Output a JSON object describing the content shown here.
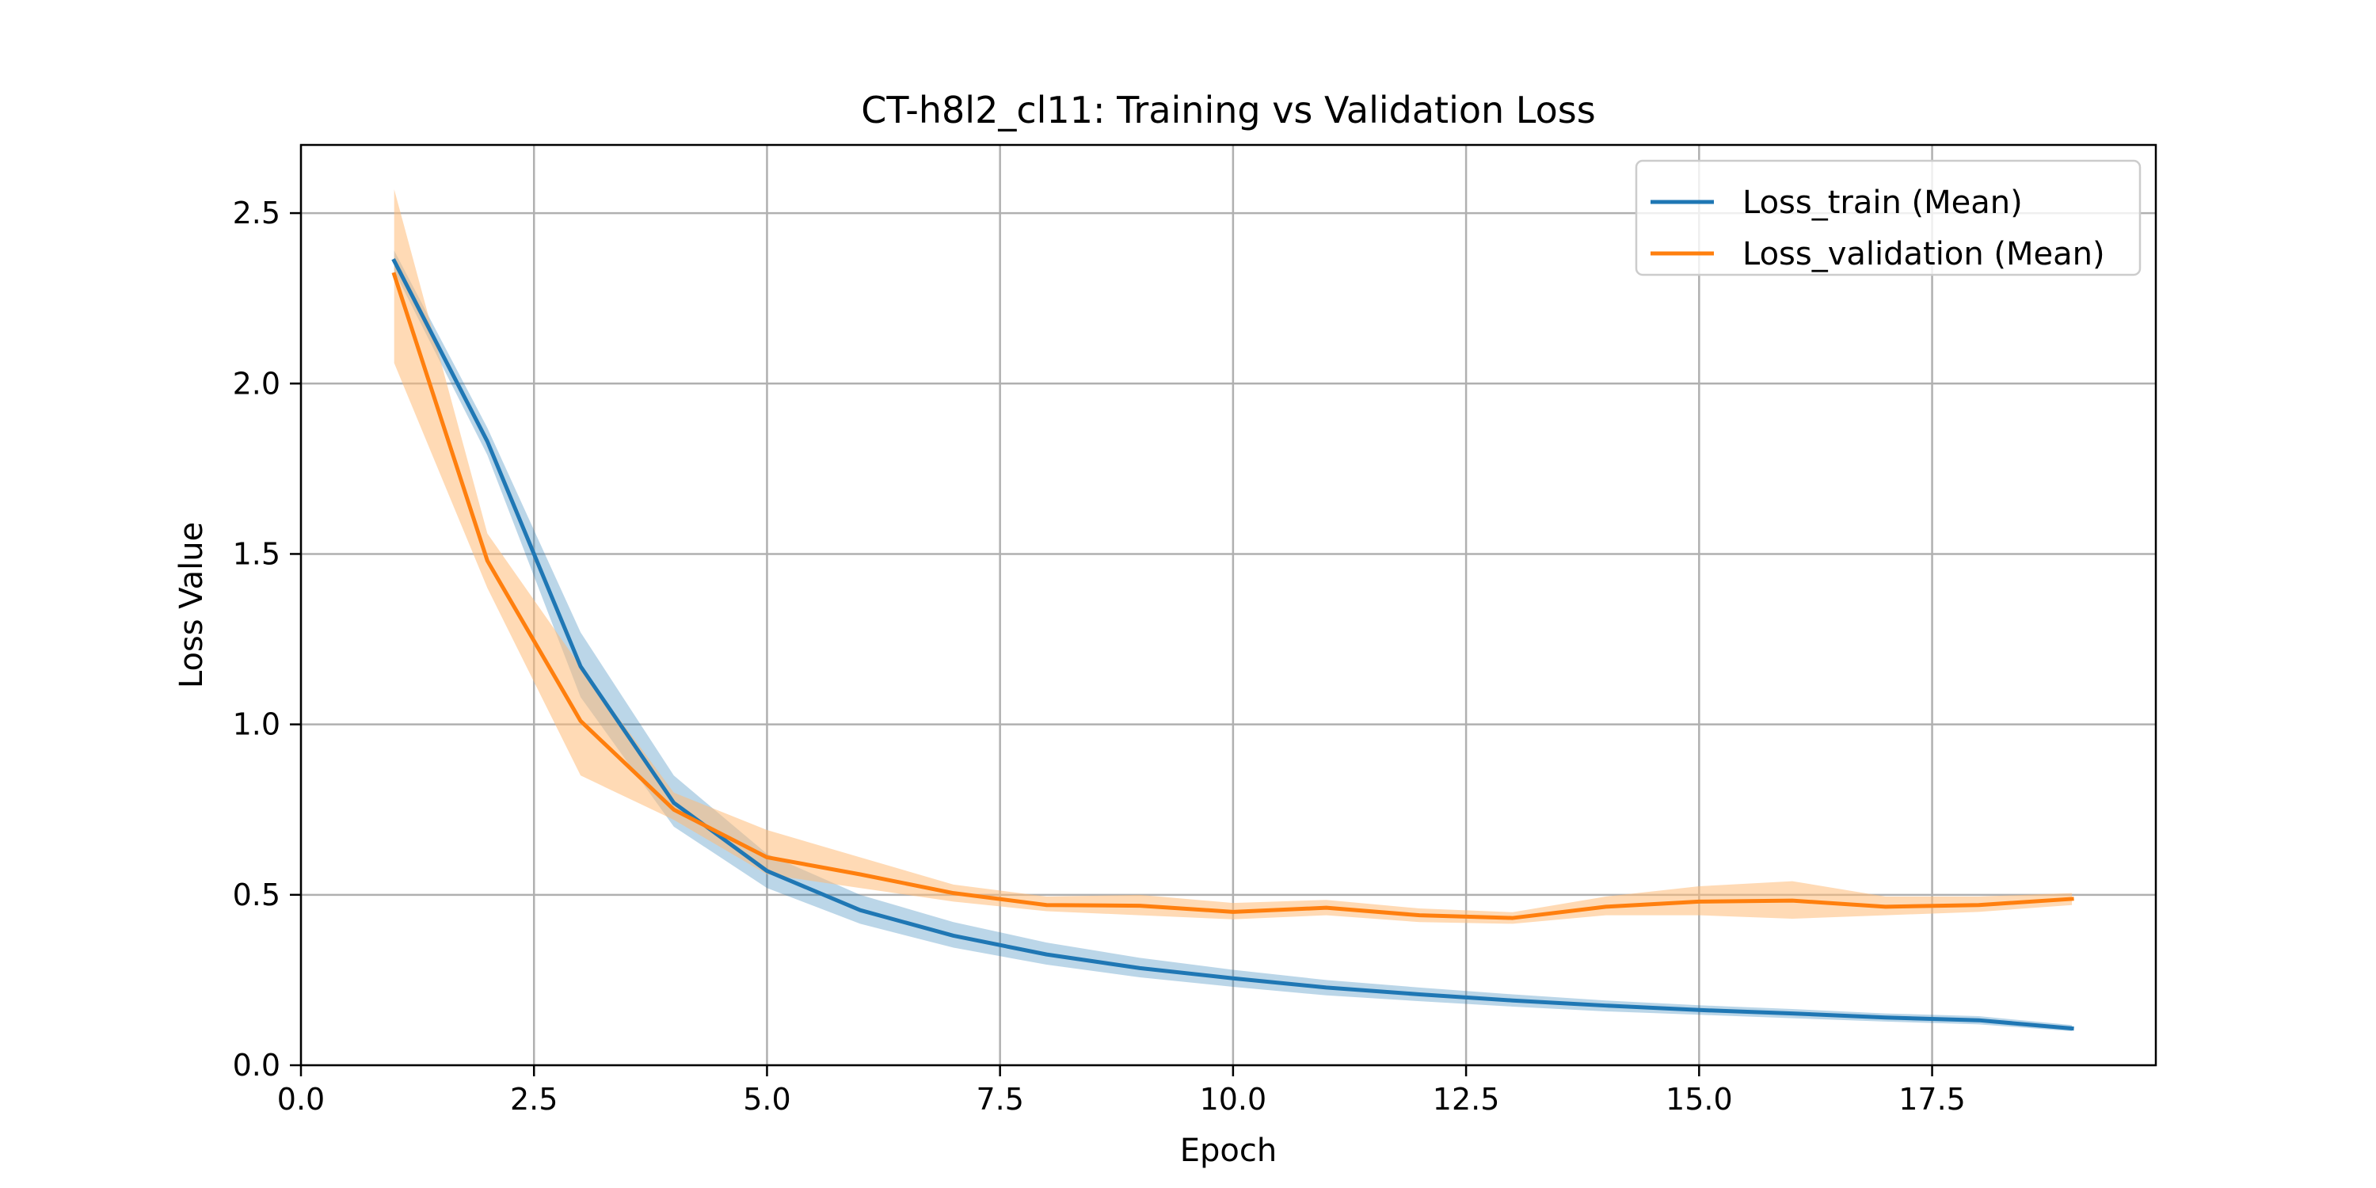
{
  "chart_data": {
    "type": "line",
    "title": "CT-h8l2_cl11: Training vs Validation Loss",
    "xlabel": "Epoch",
    "ylabel": "Loss Value",
    "xlim": [
      0,
      19.9
    ],
    "ylim": [
      0,
      2.7
    ],
    "xticks": [
      0.0,
      2.5,
      5.0,
      7.5,
      10.0,
      12.5,
      15.0,
      17.5
    ],
    "xtick_labels": [
      "0.0",
      "2.5",
      "5.0",
      "7.5",
      "10.0",
      "12.5",
      "15.0",
      "17.5"
    ],
    "yticks": [
      0.0,
      0.5,
      1.0,
      1.5,
      2.0,
      2.5
    ],
    "ytick_labels": [
      "0.0",
      "0.5",
      "1.0",
      "1.5",
      "2.0",
      "2.5"
    ],
    "grid": true,
    "legend_position": "top-right",
    "x": [
      1,
      2,
      3,
      4,
      5,
      6,
      7,
      8,
      9,
      10,
      11,
      12,
      13,
      14,
      15,
      16,
      17,
      18,
      19
    ],
    "series": [
      {
        "name": "Loss_train (Mean)",
        "color": "#1f77b4",
        "band_color": "#1f77b4",
        "values": [
          2.36,
          1.83,
          1.17,
          0.77,
          0.57,
          0.455,
          0.38,
          0.325,
          0.285,
          0.255,
          0.228,
          0.208,
          0.19,
          0.175,
          0.162,
          0.152,
          0.14,
          0.132,
          0.108
        ],
        "lower": [
          2.33,
          1.79,
          1.08,
          0.7,
          0.52,
          0.415,
          0.345,
          0.295,
          0.258,
          0.23,
          0.205,
          0.188,
          0.172,
          0.158,
          0.148,
          0.138,
          0.128,
          0.12,
          0.1
        ],
        "upper": [
          2.39,
          1.87,
          1.27,
          0.85,
          0.62,
          0.5,
          0.42,
          0.36,
          0.315,
          0.28,
          0.25,
          0.228,
          0.208,
          0.19,
          0.176,
          0.165,
          0.152,
          0.144,
          0.118
        ]
      },
      {
        "name": "Loss_validation (Mean)",
        "color": "#ff7f0e",
        "band_color": "#ffbb78",
        "values": [
          2.32,
          1.48,
          1.01,
          0.75,
          0.61,
          0.56,
          0.505,
          0.47,
          0.468,
          0.45,
          0.462,
          0.44,
          0.432,
          0.465,
          0.48,
          0.483,
          0.465,
          0.47,
          0.488
        ],
        "lower": [
          2.06,
          1.4,
          0.85,
          0.72,
          0.56,
          0.52,
          0.48,
          0.452,
          0.44,
          0.428,
          0.44,
          0.42,
          0.415,
          0.44,
          0.44,
          0.43,
          0.44,
          0.45,
          0.47
        ],
        "upper": [
          2.57,
          1.56,
          1.17,
          0.8,
          0.69,
          0.61,
          0.53,
          0.495,
          0.5,
          0.476,
          0.485,
          0.46,
          0.449,
          0.495,
          0.525,
          0.54,
          0.495,
          0.495,
          0.505
        ]
      }
    ]
  }
}
